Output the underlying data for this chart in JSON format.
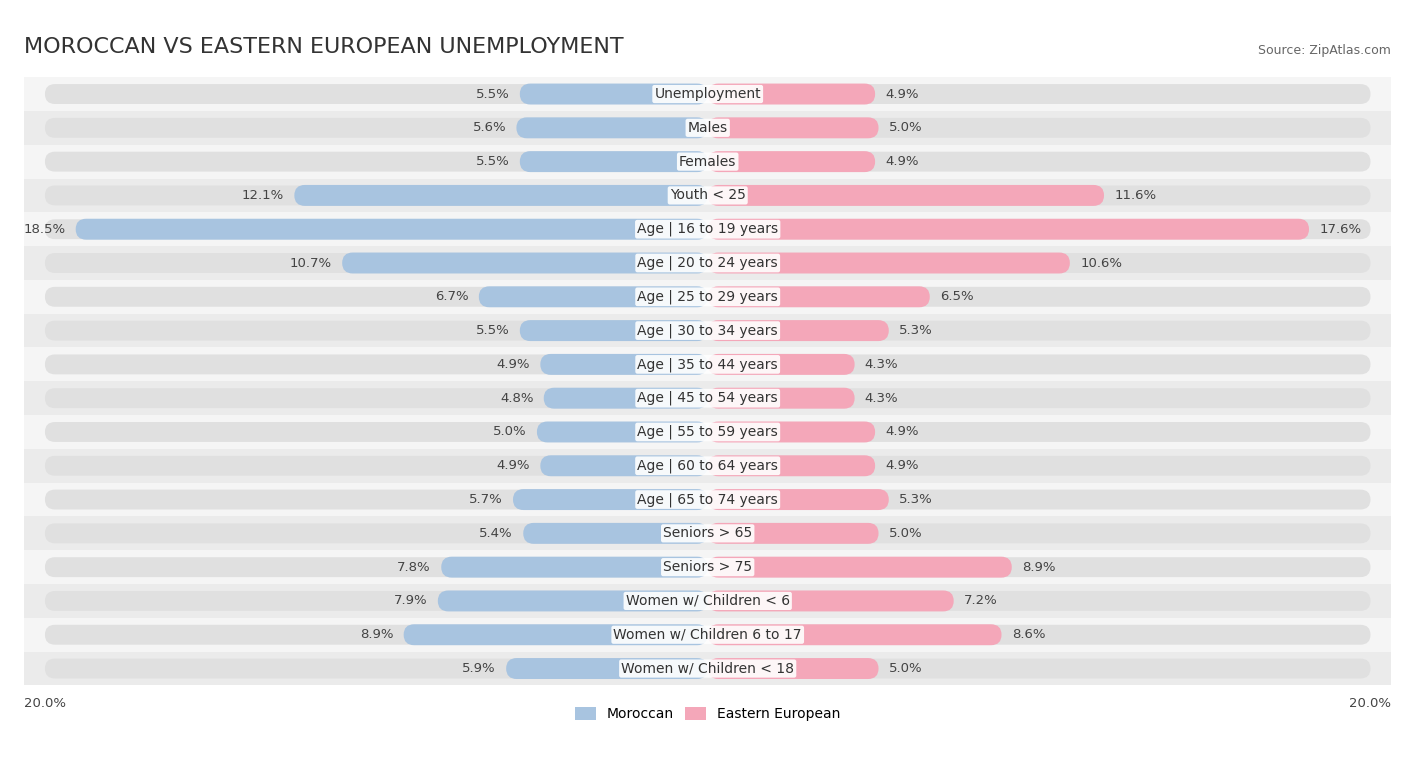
{
  "title": "MOROCCAN VS EASTERN EUROPEAN UNEMPLOYMENT",
  "source": "Source: ZipAtlas.com",
  "categories": [
    "Unemployment",
    "Males",
    "Females",
    "Youth < 25",
    "Age | 16 to 19 years",
    "Age | 20 to 24 years",
    "Age | 25 to 29 years",
    "Age | 30 to 34 years",
    "Age | 35 to 44 years",
    "Age | 45 to 54 years",
    "Age | 55 to 59 years",
    "Age | 60 to 64 years",
    "Age | 65 to 74 years",
    "Seniors > 65",
    "Seniors > 75",
    "Women w/ Children < 6",
    "Women w/ Children 6 to 17",
    "Women w/ Children < 18"
  ],
  "moroccan": [
    5.5,
    5.6,
    5.5,
    12.1,
    18.5,
    10.7,
    6.7,
    5.5,
    4.9,
    4.8,
    5.0,
    4.9,
    5.7,
    5.4,
    7.8,
    7.9,
    8.9,
    5.9
  ],
  "eastern_european": [
    4.9,
    5.0,
    4.9,
    11.6,
    17.6,
    10.6,
    6.5,
    5.3,
    4.3,
    4.3,
    4.9,
    4.9,
    5.3,
    5.0,
    8.9,
    7.2,
    8.6,
    5.0
  ],
  "moroccan_color": "#a8c4e0",
  "eastern_european_color": "#f4a7b9",
  "bar_bg_color": "#e8e8e8",
  "row_bg_colors": [
    "#f5f5f5",
    "#ebebeb"
  ],
  "max_val": 20.0,
  "title_fontsize": 16,
  "label_fontsize": 10,
  "value_fontsize": 9.5,
  "legend_fontsize": 10
}
